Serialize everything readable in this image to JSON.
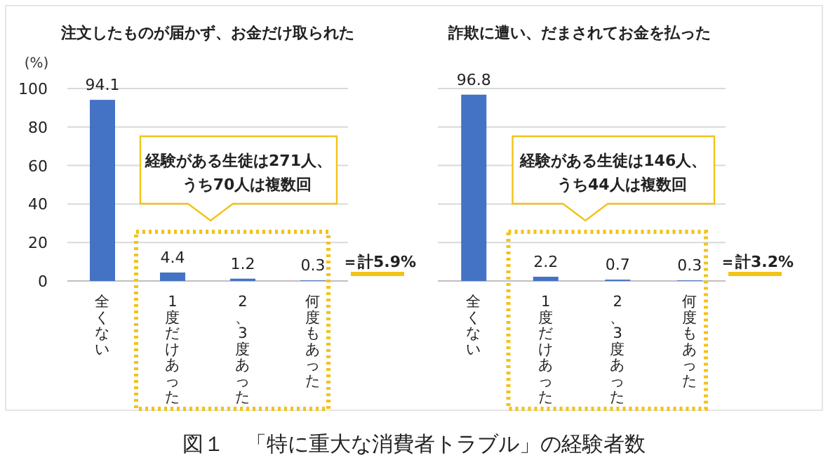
{
  "chart_data": [
    {
      "type": "bar",
      "title": "注文したものが届かず、お金だけ取られた",
      "ylabel": "(%)",
      "categories": [
        "全くない",
        "1度だけあった",
        "2、3度あった",
        "何度もあった"
      ],
      "values": [
        94.1,
        4.4,
        1.2,
        0.3
      ],
      "color": "#4472c4",
      "data_labels": true,
      "ylim": [
        0,
        100
      ],
      "yticks": [
        0,
        20,
        40,
        60,
        80,
        100
      ],
      "grid": "y",
      "annotations": [
        "経験がある生徒は271人、うち70人は複数回",
        "＝計5.9%",
        "図１　「特に重大な消費者トラブル」の経験者数"
      ]
    },
    {
      "type": "bar",
      "title": "詐欺に遭い、だまされてお金を払った",
      "categories": [
        "全くない",
        "1度だけあった",
        "2、3度あった",
        "何度もあった"
      ],
      "values": [
        96.8,
        2.2,
        0.7,
        0.3
      ],
      "color": "#4472c4",
      "data_labels": true,
      "ylim": [
        0,
        100
      ],
      "yticks": [
        0,
        20,
        40,
        60,
        80,
        100
      ],
      "grid": "y",
      "tick_labels": "x",
      "annotations": [
        "経験がある生徒は146人、うち44人は複数回",
        "＝計3.2%"
      ]
    }
  ]
}
